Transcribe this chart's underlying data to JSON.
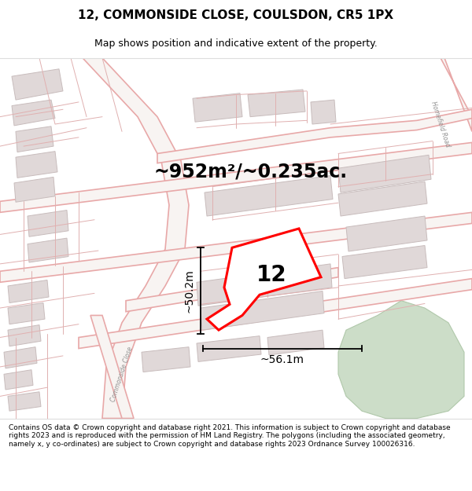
{
  "title": "12, COMMONSIDE CLOSE, COULSDON, CR5 1PX",
  "subtitle": "Map shows position and indicative extent of the property.",
  "area_text": "~952m²/~0.235ac.",
  "dim_height": "~50.2m",
  "dim_width": "~56.1m",
  "label": "12",
  "footer": "Contains OS data © Crown copyright and database right 2021. This information is subject to Crown copyright and database rights 2023 and is reproduced with the permission of HM Land Registry. The polygons (including the associated geometry, namely x, y co-ordinates) are subject to Crown copyright and database rights 2023 Ordnance Survey 100026316.",
  "map_bg": "#f2eeeb",
  "plot_color": "#ff0000",
  "plot_fill": "#ffffff",
  "road_color": "#e8a8a8",
  "road_fill": "#f8f0f0",
  "building_edge": "#c8bcbc",
  "building_fill": "#e0d8d8",
  "green_color": "#ccddc8",
  "green_edge": "#b0c8aa",
  "title_fontsize": 11,
  "subtitle_fontsize": 9,
  "area_fontsize": 17,
  "label_fontsize": 20,
  "dim_fontsize": 10,
  "footer_fontsize": 6.5,
  "road_lw": 1.2,
  "plot_lw": 2.2
}
